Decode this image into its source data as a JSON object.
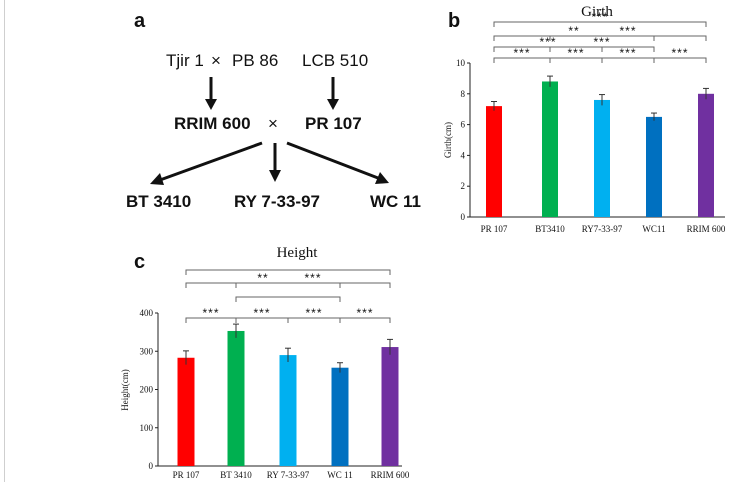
{
  "panels": {
    "a": "a",
    "b": "b",
    "c": "c"
  },
  "pedigree": {
    "parent_left": "Tjir 1",
    "cross_symbol": "×",
    "parent_mid": "PB 86",
    "parent_right": "LCB 510",
    "f1_left": "RRIM 600",
    "f1_right": "PR 107",
    "offspring": [
      "BT 3410",
      "RY 7-33-97",
      "WC 11"
    ]
  },
  "chart_data": [
    {
      "id": "girth",
      "type": "bar",
      "title": "Girth",
      "ylabel": "Girth(cm)",
      "xlabel": "",
      "categories": [
        "PR 107",
        "BT3410",
        "RY7-33-97",
        "WC11",
        "RRIM 600"
      ],
      "values": [
        7.2,
        8.8,
        7.6,
        6.5,
        8.0
      ],
      "errors": [
        0.3,
        0.35,
        0.35,
        0.25,
        0.35
      ],
      "colors": [
        "#ff0000",
        "#00b050",
        "#00b0f0",
        "#0070c0",
        "#7030a0"
      ],
      "ylim": [
        0,
        10
      ],
      "yticks": [
        0,
        2,
        4,
        6,
        8,
        10
      ],
      "significance": [
        {
          "from": 0,
          "to": 4,
          "label": "***"
        },
        {
          "from": 0,
          "to": 3,
          "label": "**"
        },
        {
          "from": 1,
          "to": 4,
          "label": "***"
        },
        {
          "from": 0,
          "to": 2,
          "label": "***"
        },
        {
          "from": 1,
          "to": 3,
          "label": "***"
        },
        {
          "from": 0,
          "to": 1,
          "label": "***"
        },
        {
          "from": 1,
          "to": 2,
          "label": "***"
        },
        {
          "from": 2,
          "to": 3,
          "label": "***"
        },
        {
          "from": 3,
          "to": 4,
          "label": "***"
        }
      ]
    },
    {
      "id": "height",
      "type": "bar",
      "title": "Height",
      "ylabel": "Height(cm)",
      "xlabel": "",
      "categories": [
        "PR 107",
        "BT 3410",
        "RY 7-33-97",
        "WC 11",
        "RRIM 600"
      ],
      "values": [
        283,
        353,
        290,
        257,
        311
      ],
      "errors": [
        18,
        18,
        18,
        13,
        20
      ],
      "colors": [
        "#ff0000",
        "#00b050",
        "#00b0f0",
        "#0070c0",
        "#7030a0"
      ],
      "ylim": [
        0,
        400
      ],
      "yticks": [
        0,
        100,
        200,
        300,
        400
      ],
      "significance": [
        {
          "from": 0,
          "to": 4,
          "label": ""
        },
        {
          "from": 0,
          "to": 3,
          "label": "**"
        },
        {
          "from": 1,
          "to": 4,
          "label": "***"
        },
        {
          "from": 1,
          "to": 3,
          "label": ""
        },
        {
          "from": 0,
          "to": 1,
          "label": "***"
        },
        {
          "from": 1,
          "to": 2,
          "label": "***"
        },
        {
          "from": 2,
          "to": 3,
          "label": "***"
        },
        {
          "from": 3,
          "to": 4,
          "label": "***"
        }
      ]
    }
  ]
}
